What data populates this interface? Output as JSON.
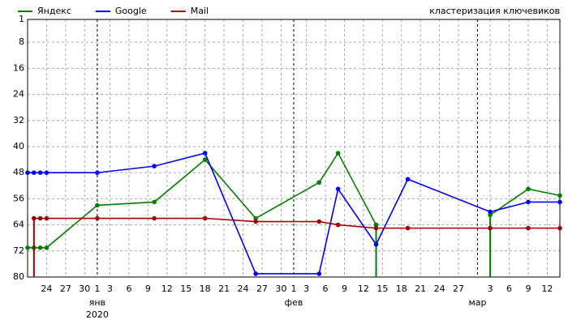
{
  "chart_data": {
    "type": "line",
    "annotation": "кластеризация ключевиков",
    "x": [
      "12-21",
      "12-22",
      "12-23",
      "12-24",
      "01-01",
      "01-10",
      "01-18",
      "01-26",
      "02-05",
      "02-08",
      "02-14",
      "02-19",
      "03-03",
      "03-09",
      "03-14"
    ],
    "series": [
      {
        "name": "Яндекс",
        "color": "#008000",
        "values": [
          71,
          71,
          71,
          71,
          58,
          57,
          44,
          62,
          51,
          42,
          64,
          null,
          61,
          53,
          55
        ]
      },
      {
        "name": "Google",
        "color": "#0000ff",
        "values": [
          48,
          48,
          48,
          48,
          48,
          46,
          42,
          79,
          79,
          53,
          70,
          50,
          60,
          57,
          57
        ]
      },
      {
        "name": "Mail",
        "color": "#a00000",
        "values": [
          null,
          62,
          62,
          62,
          62,
          62,
          62,
          63,
          63,
          64,
          65,
          65,
          65,
          65,
          65
        ]
      }
    ],
    "xlim": [
      "12-21",
      "03-14"
    ],
    "xticks": [
      {
        "value": "12-24",
        "label": "24"
      },
      {
        "value": "12-27",
        "label": "27"
      },
      {
        "value": "12-30",
        "label": "30"
      },
      {
        "value": "01-01",
        "label": "1"
      },
      {
        "value": "01-03",
        "label": "3"
      },
      {
        "value": "01-06",
        "label": "6"
      },
      {
        "value": "01-09",
        "label": "9"
      },
      {
        "value": "01-12",
        "label": "12"
      },
      {
        "value": "01-15",
        "label": "15"
      },
      {
        "value": "01-18",
        "label": "18"
      },
      {
        "value": "01-21",
        "label": "21"
      },
      {
        "value": "01-24",
        "label": "24"
      },
      {
        "value": "01-27",
        "label": "27"
      },
      {
        "value": "01-30",
        "label": "30"
      },
      {
        "value": "02-01",
        "label": "1"
      },
      {
        "value": "02-03",
        "label": "3"
      },
      {
        "value": "02-06",
        "label": "6"
      },
      {
        "value": "02-09",
        "label": "9"
      },
      {
        "value": "02-12",
        "label": "12"
      },
      {
        "value": "02-15",
        "label": "15"
      },
      {
        "value": "02-18",
        "label": "18"
      },
      {
        "value": "02-21",
        "label": "21"
      },
      {
        "value": "02-24",
        "label": "24"
      },
      {
        "value": "02-27",
        "label": "27"
      },
      {
        "value": "03-03",
        "label": "3"
      },
      {
        "value": "03-06",
        "label": "6"
      },
      {
        "value": "03-09",
        "label": "9"
      },
      {
        "value": "03-12",
        "label": "12"
      }
    ],
    "month_ticks": [
      {
        "value": "01-01",
        "label": "янв"
      },
      {
        "value": "02-01",
        "label": "фев"
      },
      {
        "value": "03-01",
        "label": "мар"
      }
    ],
    "year_label": {
      "value": "01-01",
      "label": "2020"
    },
    "ylim": [
      1,
      80
    ],
    "y_inverted": true,
    "yticks": [
      1,
      8,
      16,
      24,
      32,
      40,
      48,
      56,
      64,
      72,
      80
    ],
    "grid": true,
    "legend": "top-left"
  }
}
